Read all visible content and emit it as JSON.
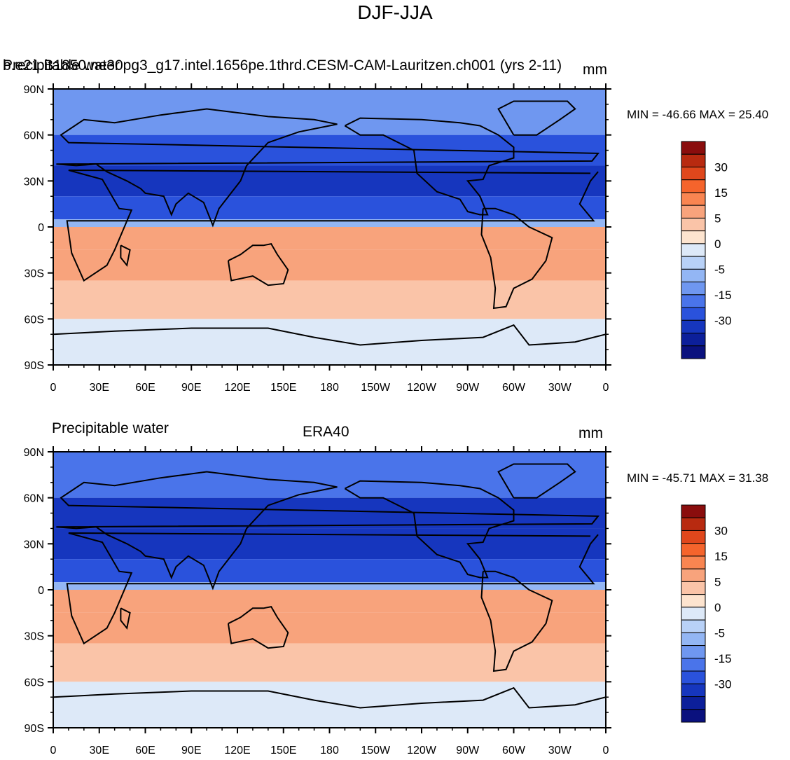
{
  "figure": {
    "title": "DJF-JJA"
  },
  "chart_data": [
    {
      "type": "heatmap",
      "subtype": "filled-contour-world-map",
      "left_title": "Precipitable water",
      "center_title": "b.e21.B1850.ne30pg3_g17.intel.1656pe.1thrd.CESM-CAM-Lauritzen.ch001 (yrs 2-11)",
      "units": "mm",
      "min": -46.66,
      "max": 25.4,
      "stats_text": "MIN = -46.66 MAX =  25.40",
      "x_ticks": [
        "0",
        "30E",
        "60E",
        "90E",
        "120E",
        "150E",
        "180",
        "150W",
        "120W",
        "90W",
        "60W",
        "30W",
        "0"
      ],
      "y_ticks": [
        "90N",
        "60N",
        "30N",
        "0",
        "30S",
        "60S",
        "90S"
      ],
      "colorbar_labels": [
        "30",
        "15",
        "5",
        "0",
        "-5",
        "-15",
        "-30"
      ],
      "colorbar_levels": [
        35,
        30,
        25,
        20,
        15,
        10,
        5,
        2.5,
        0,
        -2.5,
        -5,
        -10,
        -15,
        -20,
        -25,
        -30,
        -35
      ],
      "zonal_bands": [
        {
          "lat": [
            60,
            90
          ],
          "mean_mm": -10
        },
        {
          "lat": [
            40,
            60
          ],
          "mean_mm": -20
        },
        {
          "lat": [
            20,
            40
          ],
          "mean_mm": -25
        },
        {
          "lat": [
            5,
            20
          ],
          "mean_mm": -20
        },
        {
          "lat": [
            0,
            5
          ],
          "mean_mm": -5
        },
        {
          "lat": [
            -15,
            0
          ],
          "mean_mm": 10
        },
        {
          "lat": [
            -35,
            -15
          ],
          "mean_mm": 10
        },
        {
          "lat": [
            -60,
            -35
          ],
          "mean_mm": 5
        },
        {
          "lat": [
            -90,
            -60
          ],
          "mean_mm": 2
        }
      ]
    },
    {
      "type": "heatmap",
      "subtype": "filled-contour-world-map",
      "left_title": "Precipitable water",
      "center_title": "ERA40",
      "units": "mm",
      "min": -45.71,
      "max": 31.38,
      "stats_text": "MIN = -45.71 MAX =  31.38",
      "x_ticks": [
        "0",
        "30E",
        "60E",
        "90E",
        "120E",
        "150E",
        "180",
        "150W",
        "120W",
        "90W",
        "60W",
        "30W",
        "0"
      ],
      "y_ticks": [
        "90N",
        "60N",
        "30N",
        "0",
        "30S",
        "60S",
        "90S"
      ],
      "colorbar_labels": [
        "30",
        "15",
        "5",
        "0",
        "-5",
        "-15",
        "-30"
      ],
      "colorbar_levels": [
        35,
        30,
        25,
        20,
        15,
        10,
        5,
        2.5,
        0,
        -2.5,
        -5,
        -10,
        -15,
        -20,
        -25,
        -30,
        -35
      ],
      "zonal_bands": [
        {
          "lat": [
            60,
            90
          ],
          "mean_mm": -12
        },
        {
          "lat": [
            40,
            60
          ],
          "mean_mm": -22
        },
        {
          "lat": [
            20,
            40
          ],
          "mean_mm": -25
        },
        {
          "lat": [
            5,
            20
          ],
          "mean_mm": -18
        },
        {
          "lat": [
            0,
            5
          ],
          "mean_mm": -5
        },
        {
          "lat": [
            -15,
            0
          ],
          "mean_mm": 12
        },
        {
          "lat": [
            -35,
            -15
          ],
          "mean_mm": 12
        },
        {
          "lat": [
            -60,
            -35
          ],
          "mean_mm": 5
        },
        {
          "lat": [
            -90,
            -60
          ],
          "mean_mm": 2
        }
      ]
    }
  ],
  "colors": {
    "palette": [
      "#8a0d0d",
      "#b82a10",
      "#e0471c",
      "#f5642c",
      "#f98551",
      "#f8a37c",
      "#fac4a8",
      "#fde4cf",
      "#dde9f8",
      "#b8d1f7",
      "#93b6f4",
      "#6f97f0",
      "#4a74ea",
      "#2a52dc",
      "#1636be",
      "#0c1f9a",
      "#0a117e"
    ],
    "land_outline": "#000000"
  }
}
